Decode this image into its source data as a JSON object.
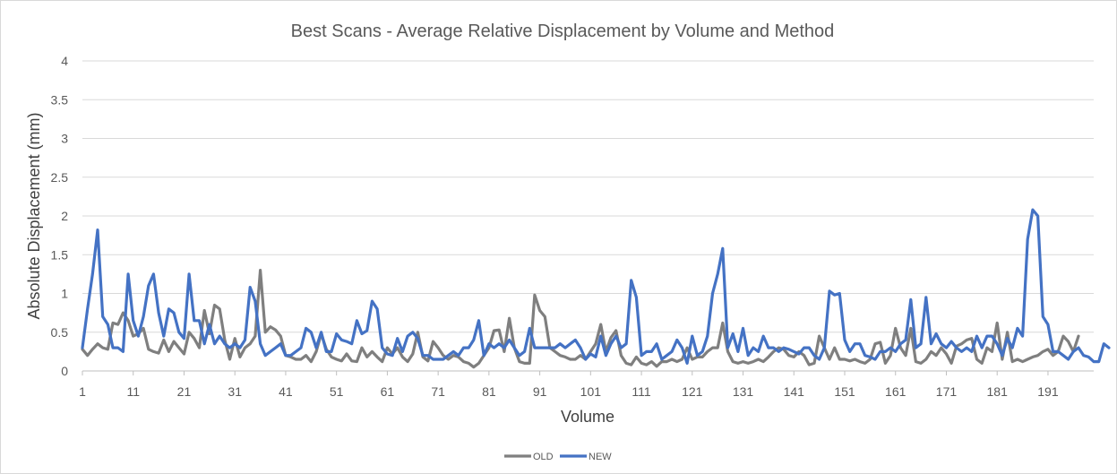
{
  "chart_data": {
    "type": "line",
    "title": "Best Scans - Average Relative Displacement by Volume and Method",
    "xlabel": "Volume",
    "ylabel": "Absolute Displacement (mm)",
    "xlim": [
      1,
      200
    ],
    "ylim": [
      0,
      4
    ],
    "yticks": [
      "0",
      "0.5",
      "1",
      "1.5",
      "2",
      "2.5",
      "3",
      "3.5",
      "4"
    ],
    "xticks": [
      "1",
      "11",
      "21",
      "31",
      "41",
      "51",
      "61",
      "71",
      "81",
      "91",
      "101",
      "111",
      "121",
      "131",
      "141",
      "151",
      "161",
      "171",
      "181",
      "191"
    ],
    "grid": true,
    "legend": "bottom",
    "series": [
      {
        "name": "OLD",
        "color": "#7f7f7f",
        "values": [
          0.28,
          0.2,
          0.28,
          0.35,
          0.3,
          0.28,
          0.62,
          0.6,
          0.75,
          0.65,
          0.45,
          0.48,
          0.55,
          0.28,
          0.25,
          0.23,
          0.4,
          0.25,
          0.38,
          0.3,
          0.22,
          0.5,
          0.42,
          0.3,
          0.78,
          0.48,
          0.85,
          0.8,
          0.4,
          0.15,
          0.42,
          0.18,
          0.3,
          0.35,
          0.45,
          1.3,
          0.5,
          0.57,
          0.53,
          0.45,
          0.2,
          0.18,
          0.15,
          0.15,
          0.2,
          0.12,
          0.25,
          0.48,
          0.28,
          0.18,
          0.15,
          0.13,
          0.22,
          0.13,
          0.12,
          0.3,
          0.18,
          0.25,
          0.18,
          0.12,
          0.3,
          0.22,
          0.3,
          0.18,
          0.12,
          0.22,
          0.5,
          0.18,
          0.13,
          0.38,
          0.3,
          0.2,
          0.15,
          0.2,
          0.18,
          0.12,
          0.1,
          0.05,
          0.1,
          0.2,
          0.3,
          0.52,
          0.53,
          0.25,
          0.68,
          0.3,
          0.12,
          0.1,
          0.1,
          0.98,
          0.78,
          0.7,
          0.3,
          0.25,
          0.2,
          0.18,
          0.15,
          0.15,
          0.2,
          0.15,
          0.25,
          0.35,
          0.6,
          0.25,
          0.43,
          0.52,
          0.2,
          0.1,
          0.08,
          0.18,
          0.1,
          0.08,
          0.12,
          0.06,
          0.12,
          0.12,
          0.15,
          0.12,
          0.15,
          0.3,
          0.15,
          0.18,
          0.18,
          0.25,
          0.3,
          0.3,
          0.62,
          0.25,
          0.12,
          0.1,
          0.12,
          0.1,
          0.12,
          0.15,
          0.12,
          0.18,
          0.25,
          0.3,
          0.28,
          0.2,
          0.18,
          0.25,
          0.2,
          0.08,
          0.1,
          0.45,
          0.3,
          0.15,
          0.3,
          0.15,
          0.15,
          0.13,
          0.15,
          0.12,
          0.1,
          0.15,
          0.35,
          0.37,
          0.1,
          0.2,
          0.55,
          0.3,
          0.2,
          0.55,
          0.12,
          0.1,
          0.15,
          0.25,
          0.2,
          0.3,
          0.22,
          0.1,
          0.32,
          0.35,
          0.4,
          0.42,
          0.15,
          0.1,
          0.3,
          0.25,
          0.62,
          0.15,
          0.5,
          0.12,
          0.15,
          0.12,
          0.15,
          0.18,
          0.2,
          0.25,
          0.28,
          0.2,
          0.25,
          0.45,
          0.38,
          0.25,
          0.45
        ]
      },
      {
        "name": "NEW",
        "color": "#4472c4",
        "values": [
          0.3,
          0.8,
          1.25,
          1.82,
          0.7,
          0.6,
          0.3,
          0.3,
          0.25,
          1.25,
          0.65,
          0.45,
          0.7,
          1.1,
          1.25,
          0.75,
          0.45,
          0.8,
          0.75,
          0.5,
          0.42,
          1.25,
          0.65,
          0.65,
          0.35,
          0.6,
          0.35,
          0.45,
          0.35,
          0.3,
          0.35,
          0.3,
          0.4,
          1.08,
          0.9,
          0.35,
          0.2,
          0.25,
          0.3,
          0.35,
          0.2,
          0.2,
          0.25,
          0.3,
          0.55,
          0.5,
          0.3,
          0.5,
          0.25,
          0.25,
          0.48,
          0.4,
          0.38,
          0.35,
          0.65,
          0.48,
          0.52,
          0.9,
          0.8,
          0.3,
          0.22,
          0.2,
          0.42,
          0.25,
          0.45,
          0.5,
          0.42,
          0.2,
          0.2,
          0.15,
          0.15,
          0.15,
          0.2,
          0.25,
          0.2,
          0.3,
          0.3,
          0.4,
          0.65,
          0.2,
          0.35,
          0.3,
          0.35,
          0.3,
          0.4,
          0.3,
          0.2,
          0.25,
          0.55,
          0.3,
          0.3,
          0.3,
          0.3,
          0.3,
          0.35,
          0.3,
          0.35,
          0.4,
          0.3,
          0.15,
          0.22,
          0.18,
          0.45,
          0.2,
          0.35,
          0.45,
          0.3,
          0.35,
          1.17,
          0.95,
          0.2,
          0.25,
          0.25,
          0.35,
          0.15,
          0.2,
          0.25,
          0.4,
          0.3,
          0.1,
          0.45,
          0.2,
          0.25,
          0.45,
          1.0,
          1.25,
          1.58,
          0.3,
          0.48,
          0.25,
          0.55,
          0.2,
          0.3,
          0.25,
          0.45,
          0.3,
          0.3,
          0.25,
          0.3,
          0.28,
          0.25,
          0.22,
          0.3,
          0.3,
          0.2,
          0.15,
          0.3,
          1.03,
          0.98,
          1.0,
          0.4,
          0.25,
          0.35,
          0.35,
          0.2,
          0.18,
          0.15,
          0.25,
          0.25,
          0.3,
          0.25,
          0.35,
          0.4,
          0.92,
          0.3,
          0.35,
          0.95,
          0.35,
          0.48,
          0.35,
          0.3,
          0.38,
          0.3,
          0.25,
          0.3,
          0.25,
          0.45,
          0.3,
          0.45,
          0.45,
          0.35,
          0.2,
          0.42,
          0.3,
          0.55,
          0.45,
          1.7,
          2.08,
          2.0,
          0.7,
          0.6,
          0.25,
          0.25,
          0.2,
          0.15,
          0.25,
          0.3,
          0.2,
          0.18,
          0.12,
          0.12,
          0.35,
          0.3
        ]
      }
    ]
  }
}
